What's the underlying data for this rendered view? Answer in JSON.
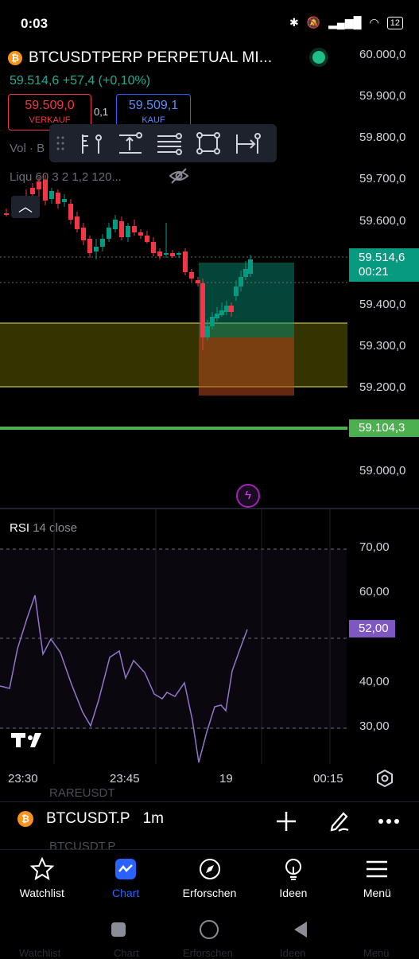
{
  "status_bar": {
    "time": "0:03",
    "battery": "12"
  },
  "header": {
    "symbol": "BTCUSDTPERP PERPETUAL MI...",
    "price_line": "59.514,6  +57,4 (+0,10%)",
    "sell": {
      "value": "59.509,0",
      "label": "VERKAUF"
    },
    "buy": {
      "value": "59.509,1",
      "label": "KAUF"
    },
    "spread": "0,1",
    "vol_label": "Vol · B",
    "liq_label": "Liqu   60 3 2 1,2 120..."
  },
  "price_axis": {
    "ticks": [
      "60.000,0",
      "59.900,0",
      "59.800,0",
      "59.700,0",
      "59.600,0",
      "59.400,0",
      "59.300,0",
      "59.200,0",
      "59.000,0"
    ],
    "current_price": "59.514,6",
    "countdown": "00:21",
    "green_line_price": "59.104,3"
  },
  "rsi": {
    "name": "RSI",
    "params": "14 close",
    "ticks": [
      "70,00",
      "60,00",
      "40,00",
      "30,00"
    ],
    "current": "52,00"
  },
  "time_axis": {
    "ticks": [
      "23:30",
      "23:45",
      "19",
      "00:15"
    ]
  },
  "bottom_bar": {
    "symbol": "BTCUSDT.P",
    "interval": "1m",
    "ghost_above": "RAREUSDT",
    "ghost_below": "BTCUSDT.P"
  },
  "tabs": [
    {
      "label": "Watchlist",
      "icon": "star-icon"
    },
    {
      "label": "Chart",
      "icon": "chart-icon",
      "active": true
    },
    {
      "label": "Erforschen",
      "icon": "compass-icon"
    },
    {
      "label": "Ideen",
      "icon": "lightbulb-icon"
    },
    {
      "label": "Menü",
      "icon": "hamburger-icon"
    }
  ],
  "ghost_tabs": [
    "Watchlist",
    "Chart",
    "Erforschen",
    "Ideen",
    "Menü"
  ],
  "colors": {
    "up": "#089981",
    "down": "#f23645",
    "rsi": "#7e57c2",
    "zone": "#4a4a00",
    "green_line": "#4caf50",
    "accent": "#2962ff"
  }
}
